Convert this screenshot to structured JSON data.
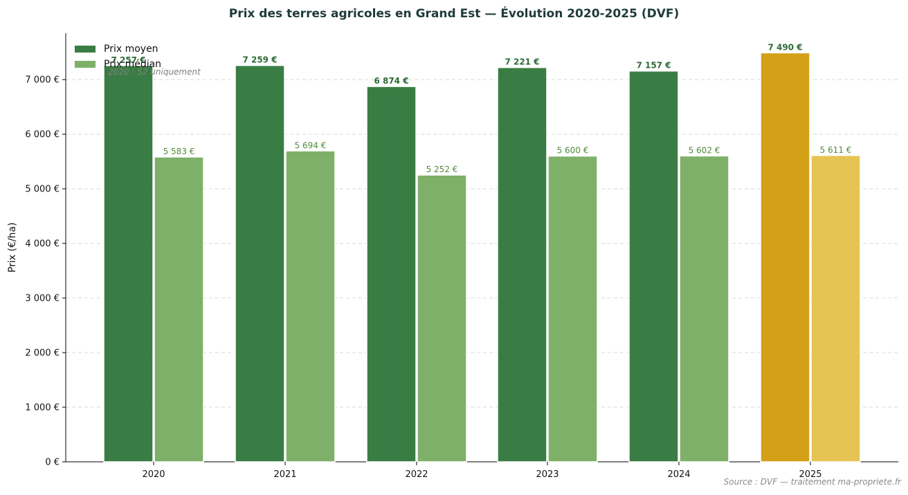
{
  "chart_data": {
    "type": "bar",
    "title": "Prix des terres agricoles en Grand Est — Évolution 2020-2025 (DVF)",
    "xlabel": "",
    "ylabel": "Prix (€/ha)",
    "categories": [
      "2020",
      "2021",
      "2022",
      "2023",
      "2024",
      "2025"
    ],
    "series": [
      {
        "name": "Prix moyen",
        "values": [
          7257,
          7259,
          6874,
          7221,
          7157,
          7490
        ],
        "labels": [
          "7 257 €",
          "7 259 €",
          "6 874 €",
          "7 221 €",
          "7 157 €",
          "7 490 €"
        ]
      },
      {
        "name": "Prix médian",
        "values": [
          5583,
          5694,
          5252,
          5600,
          5602,
          5611
        ],
        "labels": [
          "5 583 €",
          "5 694 €",
          "5 252 €",
          "5 600 €",
          "5 602 €",
          "5 611 €"
        ]
      }
    ],
    "ylim": [
      0,
      7850
    ],
    "yticks": [
      0,
      1000,
      2000,
      3000,
      4000,
      5000,
      6000,
      7000
    ],
    "ytick_labels": [
      "0 €",
      "1 000 €",
      "2 000 €",
      "3 000 €",
      "4 000 €",
      "5 000 €",
      "6 000 €",
      "7 000 €"
    ],
    "grid": "horizontal dashed",
    "legend_position": "top-left",
    "highlight_category": "2025",
    "annotation": "2020 : S2 uniquement",
    "source": "Source : DVF — traitement ma-propriete.fr"
  },
  "colors": {
    "mean": "#3a7d44",
    "median": "#7fb069",
    "mean_highlight": "#d4a017",
    "median_highlight": "#e6c453",
    "mean_label": "#2e6b36",
    "median_label": "#4f8a3a",
    "title": "#1f3a3a",
    "grid": "#d8d8d8"
  }
}
